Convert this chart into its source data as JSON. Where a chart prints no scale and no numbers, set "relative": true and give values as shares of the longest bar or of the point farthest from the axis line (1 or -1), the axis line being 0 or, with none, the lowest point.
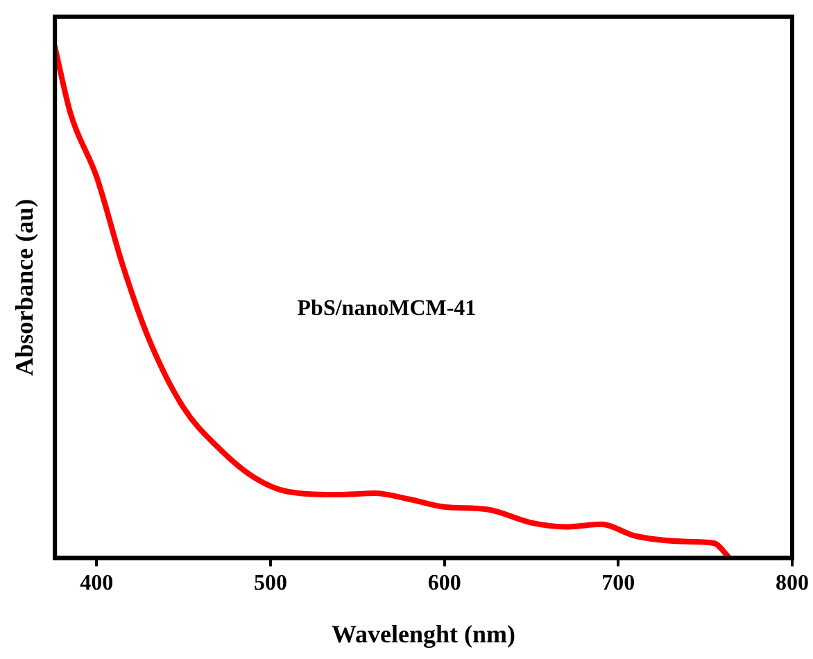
{
  "chart_data": {
    "type": "line",
    "relative": true,
    "xlabel": "Wavelenght (nm)",
    "ylabel": "Absorbance (au)",
    "annotations": [
      "PbS/nanoMCM-41"
    ],
    "x": [
      376,
      385,
      400,
      415,
      430,
      450,
      470,
      490,
      510,
      540,
      560,
      580,
      600,
      625,
      650,
      670,
      690,
      710,
      740,
      755,
      764
    ],
    "series": [
      {
        "color": "#ff0000",
        "values": [
          1,
          0.87,
          0.746,
          0.573,
          0.429,
          0.294,
          0.216,
          0.159,
          0.13,
          0.124,
          0.127,
          0.115,
          0.1,
          0.095,
          0.069,
          0.061,
          0.066,
          0.043,
          0.032,
          0.029,
          0
        ]
      }
    ],
    "xlim": [
      376,
      800
    ],
    "xticks": [
      400,
      500,
      600,
      700,
      800
    ],
    "grid": false,
    "legend": false,
    "marker": "none",
    "line_style": "solid"
  }
}
